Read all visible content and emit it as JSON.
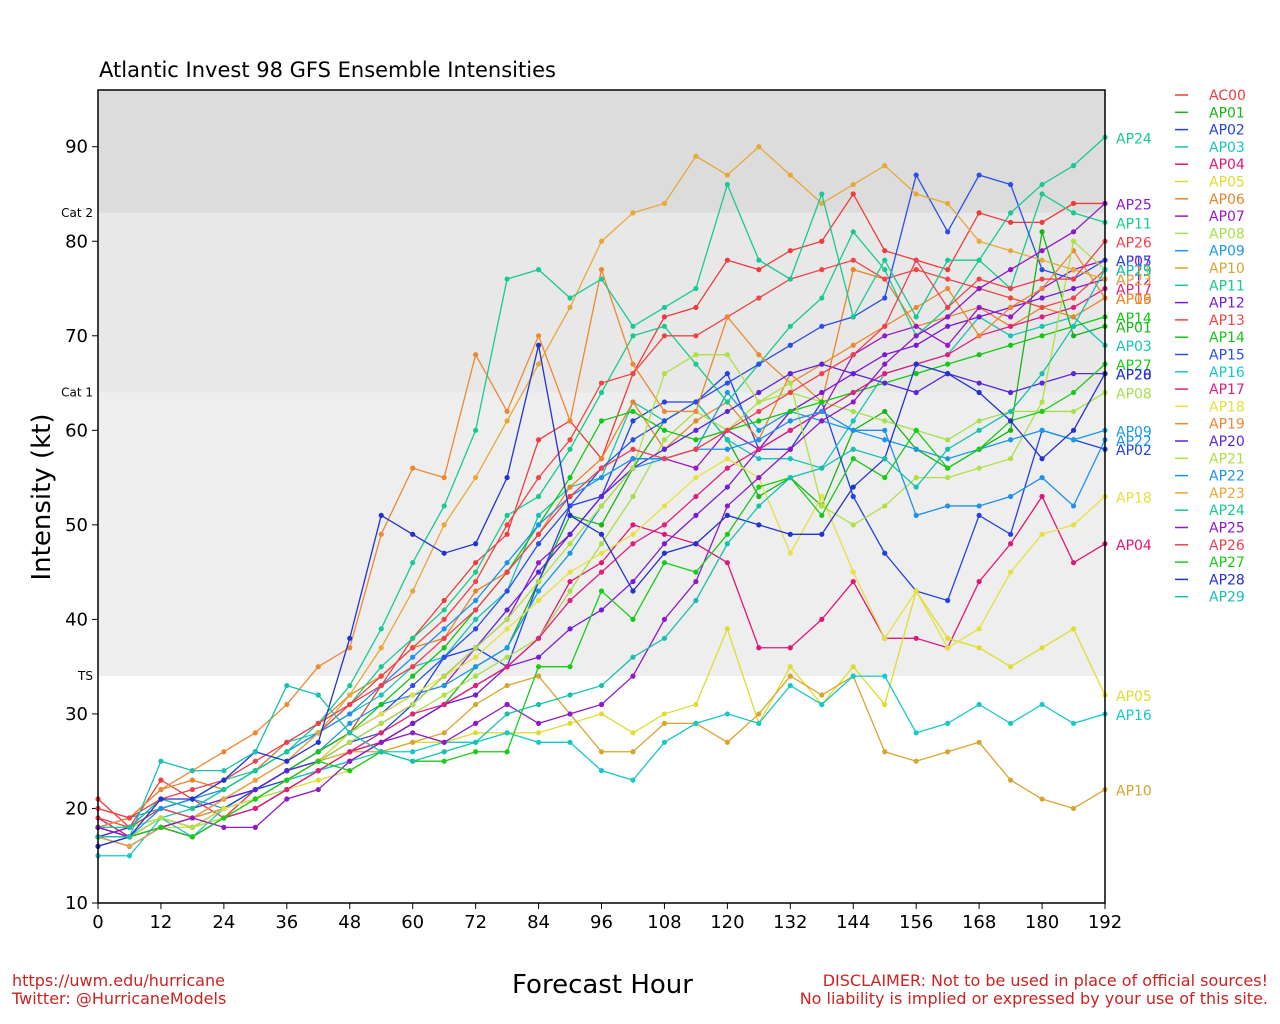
{
  "title": "Atlantic Invest 98 GFS Ensemble Intensities",
  "footer": {
    "url": "https://uwm.edu/hurricane",
    "twitter": "Twitter: @HurricaneModels",
    "disclaimer_line1": "DISCLAIMER: Not to be used in place of official sources!",
    "disclaimer_line2": "No liability is implied or expressed by your use of this site."
  },
  "chart_data": {
    "type": "line",
    "title": "Atlantic Invest 98 GFS Ensemble Intensities",
    "xlabel": "Forecast Hour",
    "ylabel": "Intensity (kt)",
    "xlim": [
      0,
      192
    ],
    "ylim": [
      10,
      96
    ],
    "xticks": [
      0,
      12,
      24,
      36,
      48,
      60,
      72,
      84,
      96,
      108,
      120,
      132,
      144,
      156,
      168,
      180,
      192
    ],
    "yticks": [
      10,
      20,
      30,
      40,
      50,
      60,
      70,
      80,
      90
    ],
    "legend": "right, outside plot",
    "bands": [
      {
        "label": "TS",
        "from": 34,
        "to": 64,
        "color": "#eeeeee"
      },
      {
        "label": "Cat 1",
        "from": 64,
        "to": 83,
        "color": "#e8e8e8"
      },
      {
        "label": "Cat 2",
        "from": 83,
        "to": 96,
        "color": "#dcdcdc"
      }
    ],
    "x": [
      0,
      6,
      12,
      18,
      24,
      30,
      36,
      42,
      48,
      54,
      60,
      66,
      72,
      78,
      84,
      90,
      96,
      102,
      108,
      114,
      120,
      126,
      132,
      138,
      144,
      150,
      156,
      162,
      168,
      174,
      180,
      186,
      192
    ],
    "series": [
      {
        "name": "AC00",
        "color": "#f03b3b",
        "values": [
          21,
          18,
          23,
          21,
          19,
          22,
          24,
          26,
          28,
          33,
          38,
          42,
          46,
          49,
          59,
          61,
          57,
          66,
          72,
          73,
          78,
          77,
          79,
          80,
          85,
          79,
          78,
          77,
          83,
          82,
          82,
          84,
          84
        ]
      },
      {
        "name": "AP01",
        "color": "#18b418",
        "values": [
          17,
          17,
          18,
          17,
          19,
          20,
          22,
          24,
          26,
          27,
          29,
          31,
          35,
          37,
          44,
          51,
          50,
          56,
          61,
          63,
          59,
          53,
          55,
          52,
          60,
          62,
          58,
          56,
          58,
          60,
          81,
          70,
          71
        ]
      },
      {
        "name": "AP02",
        "color": "#2244dd",
        "values": [
          17,
          18,
          20,
          19,
          21,
          22,
          23,
          25,
          27,
          28,
          31,
          36,
          37,
          35,
          44,
          52,
          53,
          61,
          63,
          63,
          66,
          58,
          58,
          63,
          53,
          47,
          43,
          42,
          51,
          49,
          60,
          59,
          58
        ]
      },
      {
        "name": "AP03",
        "color": "#16c4b8",
        "values": [
          18,
          17,
          19,
          20,
          22,
          24,
          27,
          28,
          30,
          32,
          35,
          36,
          40,
          43,
          51,
          54,
          55,
          63,
          61,
          63,
          59,
          57,
          57,
          56,
          61,
          66,
          67,
          68,
          72,
          70,
          71,
          72,
          69
        ]
      },
      {
        "name": "AP04",
        "color": "#e0177a",
        "values": [
          19,
          17,
          19,
          18,
          20,
          21,
          23,
          24,
          26,
          27,
          29,
          31,
          33,
          35,
          38,
          44,
          46,
          50,
          49,
          48,
          46,
          37,
          37,
          40,
          44,
          38,
          38,
          37,
          44,
          48,
          53,
          46,
          48
        ]
      },
      {
        "name": "AP05",
        "color": "#dddd30",
        "values": [
          18,
          17,
          18,
          18,
          19,
          20,
          22,
          23,
          24,
          26,
          27,
          27,
          28,
          28,
          28,
          29,
          30,
          28,
          30,
          31,
          39,
          29,
          35,
          31,
          35,
          31,
          43,
          38,
          37,
          35,
          37,
          39,
          32
        ]
      },
      {
        "name": "AP06",
        "color": "#e8852a",
        "values": [
          20,
          19,
          22,
          23,
          22,
          24,
          27,
          29,
          32,
          34,
          37,
          38,
          43,
          45,
          49,
          54,
          57,
          63,
          58,
          61,
          63,
          59,
          66,
          63,
          77,
          76,
          71,
          72,
          73,
          71,
          73,
          72,
          74
        ]
      },
      {
        "name": "AP07",
        "color": "#9a18c8",
        "values": [
          17,
          16,
          18,
          19,
          20,
          22,
          24,
          26,
          28,
          30,
          32,
          33,
          37,
          40,
          46,
          49,
          53,
          57,
          57,
          56,
          60,
          58,
          60,
          62,
          68,
          70,
          71,
          69,
          73,
          72,
          75,
          77,
          78
        ]
      },
      {
        "name": "AP08",
        "color": "#a6e04a",
        "values": [
          17,
          18,
          19,
          18,
          19,
          21,
          22,
          24,
          26,
          28,
          30,
          32,
          34,
          36,
          38,
          43,
          48,
          53,
          59,
          62,
          60,
          63,
          64,
          63,
          62,
          61,
          60,
          59,
          61,
          62,
          62,
          62,
          64
        ]
      },
      {
        "name": "AP09",
        "color": "#1a9ae6",
        "values": [
          18,
          19,
          20,
          21,
          20,
          22,
          24,
          26,
          29,
          31,
          32,
          33,
          35,
          37,
          43,
          47,
          52,
          56,
          57,
          58,
          64,
          60,
          62,
          61,
          60,
          59,
          58,
          57,
          58,
          59,
          60,
          59,
          60
        ]
      },
      {
        "name": "AP10",
        "color": "#d9a42e",
        "values": [
          18,
          17,
          18,
          19,
          20,
          21,
          23,
          25,
          26,
          26,
          27,
          28,
          31,
          33,
          34,
          30,
          26,
          26,
          29,
          29,
          27,
          30,
          34,
          32,
          34,
          26,
          25,
          26,
          27,
          23,
          21,
          20,
          22
        ]
      },
      {
        "name": "AP11",
        "color": "#17cc8a",
        "values": [
          18,
          18,
          20,
          21,
          23,
          24,
          26,
          28,
          31,
          35,
          38,
          41,
          45,
          51,
          53,
          58,
          64,
          70,
          71,
          67,
          63,
          67,
          71,
          74,
          81,
          77,
          70,
          73,
          78,
          75,
          85,
          83,
          82
        ]
      },
      {
        "name": "AP12",
        "color": "#7a1ad8",
        "values": [
          17,
          16,
          18,
          17,
          19,
          20,
          22,
          24,
          25,
          27,
          29,
          31,
          32,
          35,
          36,
          39,
          41,
          44,
          48,
          51,
          54,
          58,
          62,
          64,
          66,
          68,
          69,
          71,
          72,
          73,
          74,
          75,
          76
        ]
      },
      {
        "name": "AP13",
        "color": "#f04545",
        "values": [
          19,
          18,
          20,
          19,
          21,
          23,
          25,
          28,
          31,
          34,
          37,
          40,
          44,
          50,
          55,
          59,
          65,
          66,
          70,
          70,
          72,
          74,
          76,
          77,
          78,
          76,
          77,
          76,
          75,
          74,
          73,
          74,
          77
        ]
      },
      {
        "name": "AP14",
        "color": "#12c812",
        "values": [
          17,
          17,
          19,
          18,
          20,
          22,
          24,
          26,
          28,
          31,
          34,
          37,
          41,
          45,
          50,
          55,
          61,
          62,
          60,
          59,
          60,
          61,
          62,
          63,
          64,
          65,
          66,
          67,
          68,
          69,
          70,
          71,
          72
        ]
      },
      {
        "name": "AP15",
        "color": "#2a4fe8",
        "values": [
          16,
          17,
          19,
          18,
          20,
          22,
          24,
          25,
          28,
          30,
          33,
          36,
          39,
          43,
          48,
          52,
          56,
          59,
          61,
          63,
          65,
          67,
          69,
          71,
          72,
          74,
          87,
          81,
          87,
          86,
          77,
          76,
          78
        ]
      },
      {
        "name": "AP16",
        "color": "#18c8c8",
        "values": [
          15,
          15,
          19,
          17,
          20,
          21,
          23,
          24,
          25,
          26,
          26,
          27,
          27,
          28,
          27,
          27,
          24,
          23,
          27,
          29,
          30,
          29,
          33,
          31,
          34,
          34,
          28,
          29,
          31,
          29,
          31,
          29,
          30
        ]
      },
      {
        "name": "AP17",
        "color": "#e02080",
        "values": [
          18,
          17,
          18,
          17,
          19,
          20,
          22,
          24,
          26,
          28,
          30,
          31,
          33,
          35,
          38,
          42,
          45,
          48,
          50,
          53,
          56,
          58,
          60,
          62,
          64,
          66,
          67,
          68,
          70,
          71,
          72,
          73,
          75
        ]
      },
      {
        "name": "AP18",
        "color": "#e6e040",
        "values": [
          18,
          17,
          19,
          18,
          20,
          21,
          23,
          25,
          28,
          30,
          32,
          34,
          36,
          39,
          42,
          45,
          47,
          49,
          52,
          55,
          57,
          55,
          47,
          53,
          45,
          38,
          43,
          37,
          39,
          45,
          49,
          50,
          53
        ]
      },
      {
        "name": "AP19",
        "color": "#ee8830",
        "values": [
          18,
          19,
          22,
          24,
          26,
          28,
          31,
          35,
          37,
          49,
          56,
          55,
          68,
          62,
          70,
          61,
          77,
          67,
          62,
          62,
          72,
          68,
          65,
          67,
          69,
          71,
          73,
          75,
          70,
          73,
          75,
          79,
          74
        ]
      },
      {
        "name": "AP20",
        "color": "#5a26d8",
        "values": [
          17,
          18,
          21,
          20,
          21,
          22,
          24,
          25,
          27,
          29,
          31,
          34,
          37,
          41,
          45,
          49,
          53,
          56,
          58,
          60,
          62,
          64,
          66,
          67,
          66,
          65,
          64,
          66,
          65,
          64,
          65,
          66,
          66
        ]
      },
      {
        "name": "AP21",
        "color": "#b0e046",
        "values": [
          16,
          17,
          19,
          18,
          19,
          21,
          23,
          25,
          27,
          29,
          31,
          34,
          37,
          40,
          44,
          48,
          52,
          56,
          66,
          68,
          68,
          63,
          65,
          52,
          50,
          52,
          55,
          55,
          56,
          57,
          63,
          80,
          77
        ]
      },
      {
        "name": "AP22",
        "color": "#1e90f0",
        "values": [
          18,
          17,
          20,
          21,
          22,
          24,
          26,
          28,
          30,
          33,
          36,
          39,
          42,
          46,
          50,
          53,
          55,
          57,
          57,
          58,
          58,
          59,
          61,
          62,
          60,
          60,
          51,
          52,
          52,
          53,
          55,
          52,
          59
        ]
      },
      {
        "name": "AP23",
        "color": "#e8a838",
        "values": [
          17,
          16,
          18,
          19,
          21,
          23,
          25,
          28,
          32,
          37,
          43,
          50,
          55,
          61,
          67,
          73,
          80,
          83,
          84,
          89,
          87,
          90,
          87,
          84,
          86,
          88,
          85,
          84,
          80,
          79,
          78,
          77,
          76
        ]
      },
      {
        "name": "AP24",
        "color": "#18c896",
        "values": [
          18,
          18,
          21,
          20,
          22,
          24,
          26,
          29,
          33,
          39,
          46,
          52,
          60,
          76,
          77,
          74,
          76,
          71,
          73,
          75,
          86,
          78,
          76,
          85,
          72,
          78,
          72,
          78,
          78,
          83,
          86,
          88,
          91
        ]
      },
      {
        "name": "AP25",
        "color": "#9018c8",
        "values": [
          18,
          17,
          18,
          19,
          18,
          18,
          21,
          22,
          25,
          27,
          28,
          27,
          29,
          31,
          29,
          30,
          31,
          34,
          40,
          44,
          52,
          55,
          58,
          61,
          63,
          67,
          70,
          72,
          75,
          77,
          79,
          81,
          84
        ]
      },
      {
        "name": "AP26",
        "color": "#f04050",
        "values": [
          20,
          19,
          21,
          22,
          23,
          25,
          27,
          29,
          31,
          33,
          35,
          38,
          41,
          45,
          49,
          53,
          56,
          58,
          57,
          58,
          60,
          62,
          64,
          66,
          68,
          71,
          78,
          73,
          76,
          75,
          76,
          76,
          80
        ]
      },
      {
        "name": "AP27",
        "color": "#1acc1a",
        "values": [
          17,
          17,
          18,
          17,
          19,
          21,
          23,
          25,
          24,
          26,
          25,
          25,
          26,
          26,
          35,
          35,
          43,
          40,
          46,
          45,
          49,
          54,
          55,
          51,
          57,
          55,
          60,
          56,
          58,
          61,
          62,
          64,
          67
        ]
      },
      {
        "name": "AP28",
        "color": "#2233cc",
        "values": [
          16,
          17,
          21,
          21,
          23,
          26,
          25,
          27,
          38,
          51,
          49,
          47,
          48,
          55,
          69,
          51,
          49,
          43,
          47,
          48,
          51,
          50,
          49,
          49,
          54,
          57,
          67,
          66,
          64,
          61,
          57,
          60,
          66
        ]
      },
      {
        "name": "AP29",
        "color": "#18c0b0",
        "values": [
          17,
          17,
          25,
          24,
          24,
          26,
          33,
          32,
          28,
          26,
          25,
          26,
          27,
          30,
          31,
          32,
          33,
          36,
          38,
          42,
          48,
          52,
          55,
          56,
          58,
          57,
          54,
          58,
          60,
          62,
          66,
          71,
          77
        ]
      }
    ]
  }
}
